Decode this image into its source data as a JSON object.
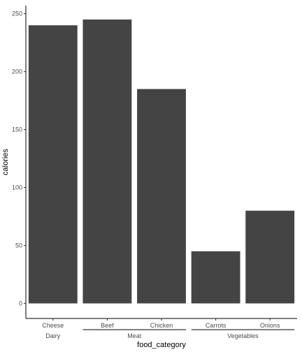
{
  "chart_data": {
    "type": "bar",
    "categories": [
      "Cheese",
      "Beef",
      "Chicken",
      "Carrots",
      "Onions"
    ],
    "values": [
      240,
      245,
      185,
      45,
      80
    ],
    "groups": [
      {
        "label": "Dairy",
        "categories": [
          "Cheese"
        ]
      },
      {
        "label": "Meat",
        "categories": [
          "Beef",
          "Chicken"
        ]
      },
      {
        "label": "Vegetables",
        "categories": [
          "Carrots",
          "Onions"
        ]
      }
    ],
    "xlabel": "food_category",
    "ylabel": "calories",
    "ylim": [
      -13,
      257
    ],
    "yticks": [
      0,
      50,
      100,
      150,
      200,
      250
    ],
    "bar_color": "#444444",
    "grid": false,
    "legend": "none"
  }
}
